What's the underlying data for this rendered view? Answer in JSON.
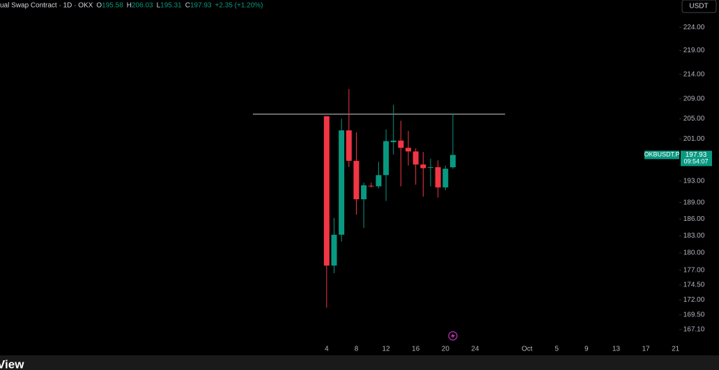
{
  "chart_data": {
    "type": "candlestick",
    "header": {
      "symbol_text": "ual Swap Contract · 1D · OKX",
      "o_label": "O",
      "h_label": "H",
      "l_label": "L",
      "c_label": "C",
      "change": "+2.35 (+1.20%)"
    },
    "currency_button": "USDT",
    "price_label": {
      "symbol": "OKBUSDT.P",
      "countdown": "09:54:07"
    },
    "brand": "View",
    "up_color": "#089981",
    "down_color": "#f23645",
    "x": [
      4,
      5,
      6,
      7,
      8,
      9,
      10,
      11,
      12,
      13,
      14,
      15,
      16,
      17,
      18,
      19,
      20,
      21
    ],
    "open": [
      205.5,
      177.8,
      183.2,
      202.7,
      196.8,
      189.6,
      192.1,
      192.0,
      194.1,
      200.4,
      200.7,
      199.3,
      198.6,
      196.1,
      195.5,
      195.6,
      191.8,
      195.58
    ],
    "high": [
      205.5,
      186.2,
      205.0,
      211.0,
      202.3,
      192.7,
      192.7,
      196.6,
      202.9,
      207.8,
      204.6,
      202.6,
      199.2,
      198.5,
      197.2,
      196.9,
      195.9,
      206.03
    ],
    "low": [
      170.7,
      176.5,
      182.0,
      195.6,
      186.8,
      184.4,
      191.8,
      191.6,
      189.3,
      198.0,
      192.0,
      195.9,
      192.3,
      190.1,
      192.0,
      189.9,
      191.3,
      195.31
    ],
    "close": [
      177.8,
      183.2,
      202.7,
      196.8,
      189.6,
      192.2,
      192.0,
      194.1,
      200.6,
      200.7,
      199.3,
      198.6,
      196.1,
      195.4,
      195.6,
      191.8,
      195.3,
      197.93
    ],
    "hline": 205.9,
    "log_scale": true,
    "ylim": [
      165.2,
      230
    ],
    "yticks": [
      {
        "value": 224,
        "label": "224.00"
      },
      {
        "value": 219,
        "label": "219.00"
      },
      {
        "value": 214,
        "label": "214.00"
      },
      {
        "value": 209,
        "label": "209.00"
      },
      {
        "value": 205,
        "label": "205.00"
      },
      {
        "value": 201,
        "label": "201.00"
      },
      {
        "value": 193,
        "label": "193.00"
      },
      {
        "value": 189,
        "label": "189.00"
      },
      {
        "value": 186,
        "label": "186.00"
      },
      {
        "value": 183,
        "label": "183.00"
      },
      {
        "value": 180,
        "label": "180.00"
      },
      {
        "value": 177,
        "label": "177.00"
      },
      {
        "value": 174.5,
        "label": "174.50"
      },
      {
        "value": 172,
        "label": "172.00"
      },
      {
        "value": 169.5,
        "label": "169.50"
      },
      {
        "value": 167.1,
        "label": "167.10"
      }
    ],
    "xlim": [
      -40,
      51.5
    ],
    "xticks": [
      4,
      8,
      12,
      16,
      20,
      24,
      {
        "value": 31,
        "label": "Oct"
      },
      {
        "value": 35,
        "label": "5"
      },
      {
        "value": 39,
        "label": "9"
      },
      {
        "value": 43,
        "label": "13"
      },
      {
        "value": 47,
        "label": "17"
      },
      {
        "value": 51,
        "label": "21"
      }
    ]
  }
}
